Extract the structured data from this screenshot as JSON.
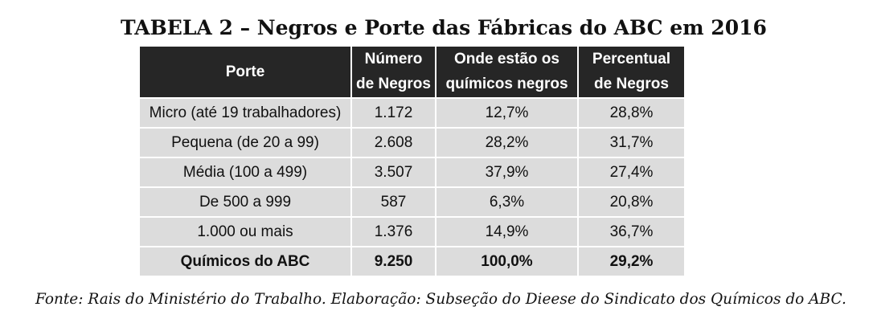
{
  "title": "TABELA 2 – Negros e Porte das Fábricas do ABC em 2016",
  "table": {
    "headers": {
      "porte": "Porte",
      "numero_line1": "Número",
      "numero_line2": "de Negros",
      "onde_line1": "Onde estão os",
      "onde_line2": "químicos negros",
      "percentual_line1": "Percentual",
      "percentual_line2": "de Negros"
    },
    "rows": [
      {
        "porte": "Micro (até 19 trabalhadores)",
        "numero": "1.172",
        "onde": "12,7%",
        "percentual": "28,8%"
      },
      {
        "porte": "Pequena (de 20 a 99)",
        "numero": "2.608",
        "onde": "28,2%",
        "percentual": "31,7%"
      },
      {
        "porte": "Média (100 a 499)",
        "numero": "3.507",
        "onde": "37,9%",
        "percentual": "27,4%"
      },
      {
        "porte": "De 500 a 999",
        "numero": "587",
        "onde": "6,3%",
        "percentual": "20,8%"
      },
      {
        "porte": "1.000 ou mais",
        "numero": "1.376",
        "onde": "14,9%",
        "percentual": "36,7%"
      }
    ],
    "total": {
      "porte": "Químicos do ABC",
      "numero": "9.250",
      "onde": "100,0%",
      "percentual": "29,2%"
    }
  },
  "source": "Fonte: Rais do Ministério do Trabalho. Elaboração: Subseção do Dieese do Sindicato dos Químicos do ABC.",
  "colors": {
    "header_bg": "#262626",
    "header_text": "#ffffff",
    "cell_bg": "#dcdcdc",
    "text": "#111111"
  }
}
